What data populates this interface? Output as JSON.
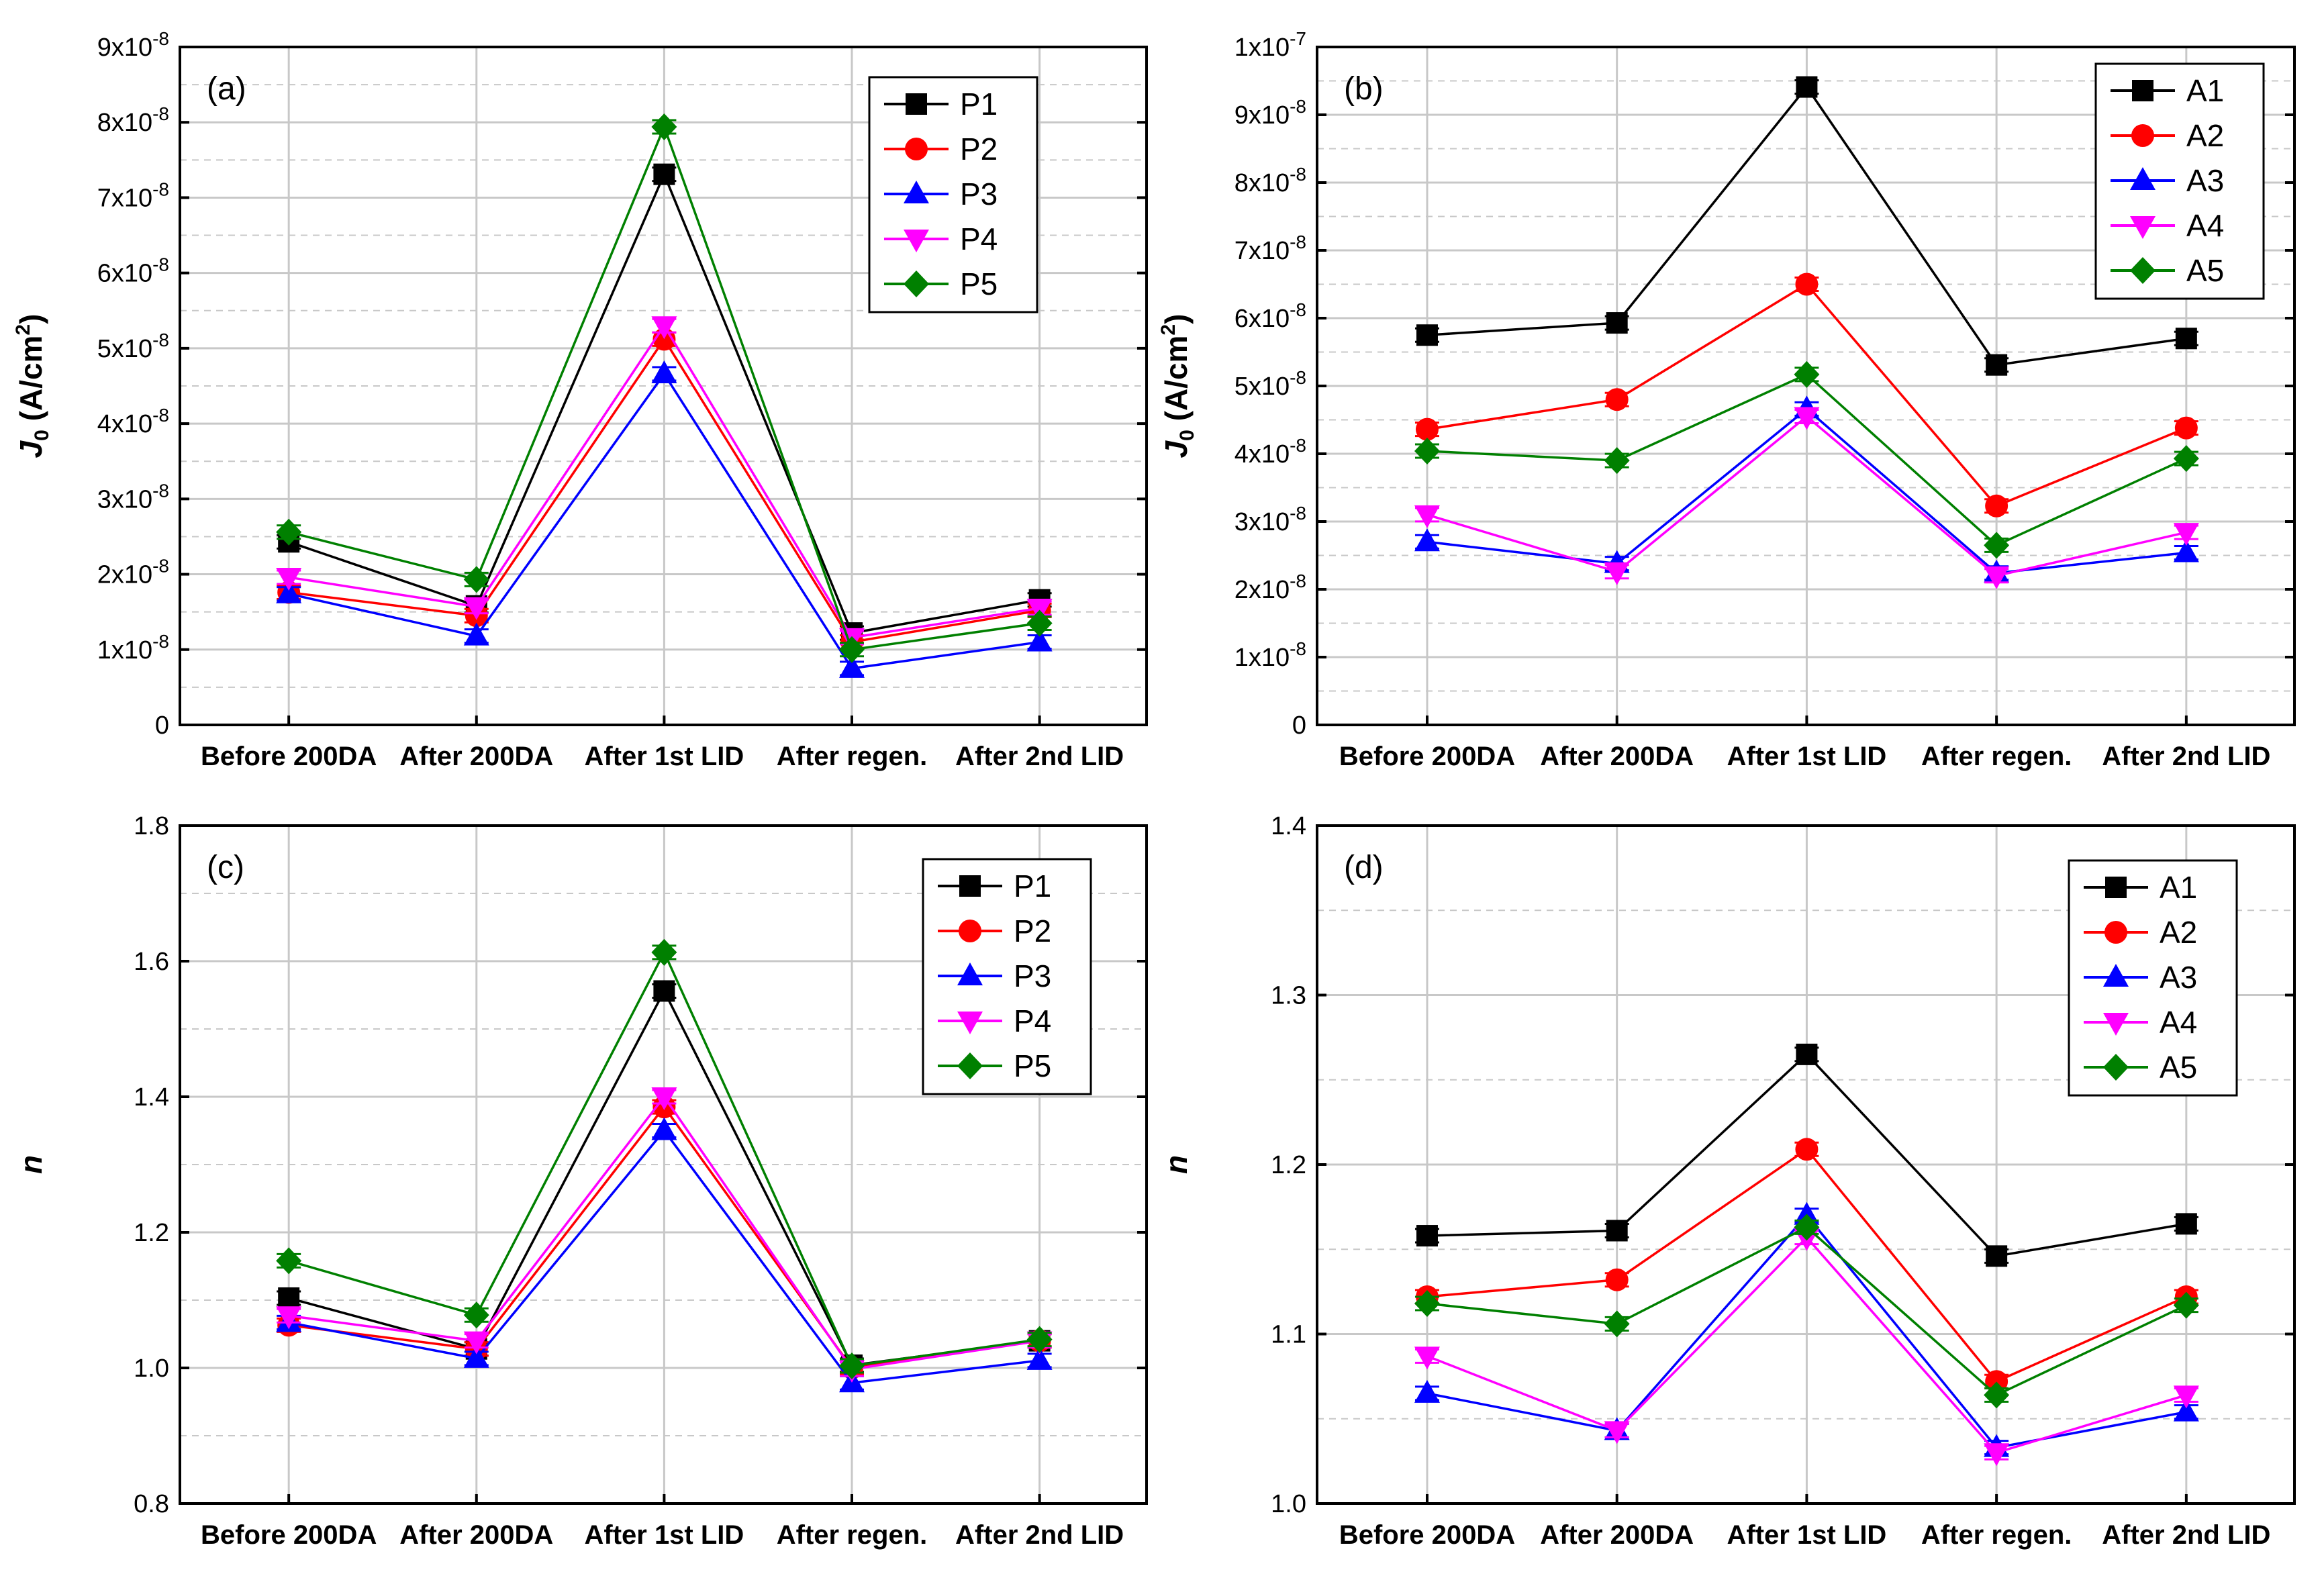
{
  "categories": [
    "Before 200DA",
    "After 200DA",
    "After 1st LID",
    "After regen.",
    "After 2nd LID"
  ],
  "colors": {
    "s1": "#000000",
    "s2": "#ff0000",
    "s3": "#0000ff",
    "s4": "#ff00ff",
    "s5": "#008000",
    "grid": "#c8c8c8"
  },
  "chart_data": [
    {
      "type": "line",
      "panel_label": "(a)",
      "ylabel": "J0 (A/cm2)",
      "ylabel_parts": {
        "main": "J",
        "sub": "0",
        "units": " (A/cm",
        "sup": "2",
        "close": ")"
      },
      "ylim": [
        0,
        9e-08
      ],
      "yticks": [
        {
          "v": 0,
          "mant": "0",
          "exp": ""
        },
        {
          "v": 1e-08,
          "mant": "1x10",
          "exp": "-8"
        },
        {
          "v": 2e-08,
          "mant": "2x10",
          "exp": "-8"
        },
        {
          "v": 3e-08,
          "mant": "3x10",
          "exp": "-8"
        },
        {
          "v": 4e-08,
          "mant": "4x10",
          "exp": "-8"
        },
        {
          "v": 5e-08,
          "mant": "5x10",
          "exp": "-8"
        },
        {
          "v": 6e-08,
          "mant": "6x10",
          "exp": "-8"
        },
        {
          "v": 7e-08,
          "mant": "7x10",
          "exp": "-8"
        },
        {
          "v": 8e-08,
          "mant": "8x10",
          "exp": "-8"
        },
        {
          "v": 9e-08,
          "mant": "9x10",
          "exp": "-8"
        }
      ],
      "legend_position": "top-right",
      "series": [
        {
          "name": "P1",
          "marker": "square",
          "values": [
            2.43e-08,
            1.58e-08,
            7.31e-08,
            1.22e-08,
            1.66e-08
          ]
        },
        {
          "name": "P2",
          "marker": "circle",
          "values": [
            1.76e-08,
            1.45e-08,
            5.12e-08,
            1.1e-08,
            1.52e-08
          ]
        },
        {
          "name": "P3",
          "marker": "triangle-up",
          "values": [
            1.74e-08,
            1.18e-08,
            4.66e-08,
            7.5e-09,
            1.1e-08
          ]
        },
        {
          "name": "P4",
          "marker": "triangle-down",
          "values": [
            1.96e-08,
            1.57e-08,
            5.3e-08,
            1.16e-08,
            1.55e-08
          ]
        },
        {
          "name": "P5",
          "marker": "diamond",
          "values": [
            2.56e-08,
            1.93e-08,
            7.94e-08,
            1e-08,
            1.35e-08
          ]
        }
      ]
    },
    {
      "type": "line",
      "panel_label": "(b)",
      "ylabel": "J0 (A/cm2)",
      "ylabel_parts": {
        "main": "J",
        "sub": "0",
        "units": " (A/cm",
        "sup": "2",
        "close": ")"
      },
      "ylim": [
        0,
        1e-07
      ],
      "yticks": [
        {
          "v": 0,
          "mant": "0",
          "exp": ""
        },
        {
          "v": 1e-08,
          "mant": "1x10",
          "exp": "-8"
        },
        {
          "v": 2e-08,
          "mant": "2x10",
          "exp": "-8"
        },
        {
          "v": 3e-08,
          "mant": "3x10",
          "exp": "-8"
        },
        {
          "v": 4e-08,
          "mant": "4x10",
          "exp": "-8"
        },
        {
          "v": 5e-08,
          "mant": "5x10",
          "exp": "-8"
        },
        {
          "v": 6e-08,
          "mant": "6x10",
          "exp": "-8"
        },
        {
          "v": 7e-08,
          "mant": "7x10",
          "exp": "-8"
        },
        {
          "v": 8e-08,
          "mant": "8x10",
          "exp": "-8"
        },
        {
          "v": 9e-08,
          "mant": "9x10",
          "exp": "-8"
        },
        {
          "v": 1e-07,
          "mant": "1x10",
          "exp": "-7"
        }
      ],
      "legend_position": "top-right",
      "series": [
        {
          "name": "A1",
          "marker": "square",
          "values": [
            5.75e-08,
            5.93e-08,
            9.41e-08,
            5.31e-08,
            5.7e-08
          ]
        },
        {
          "name": "A2",
          "marker": "circle",
          "values": [
            4.36e-08,
            4.8e-08,
            6.5e-08,
            3.23e-08,
            4.38e-08
          ]
        },
        {
          "name": "A3",
          "marker": "triangle-up",
          "values": [
            2.7e-08,
            2.38e-08,
            4.66e-08,
            2.24e-08,
            2.54e-08
          ]
        },
        {
          "name": "A4",
          "marker": "triangle-down",
          "values": [
            3.1e-08,
            2.26e-08,
            4.55e-08,
            2.2e-08,
            2.84e-08
          ]
        },
        {
          "name": "A5",
          "marker": "diamond",
          "values": [
            4.04e-08,
            3.9e-08,
            5.17e-08,
            2.65e-08,
            3.93e-08
          ]
        }
      ]
    },
    {
      "type": "line",
      "panel_label": "(c)",
      "ylabel": "n",
      "ylim": [
        0.8,
        1.8
      ],
      "yticks": [
        {
          "v": 0.8,
          "mant": "0.8",
          "exp": ""
        },
        {
          "v": 1.0,
          "mant": "1.0",
          "exp": ""
        },
        {
          "v": 1.2,
          "mant": "1.2",
          "exp": ""
        },
        {
          "v": 1.4,
          "mant": "1.4",
          "exp": ""
        },
        {
          "v": 1.6,
          "mant": "1.6",
          "exp": ""
        },
        {
          "v": 1.8,
          "mant": "1.8",
          "exp": ""
        }
      ],
      "legend_position": "top-right",
      "series": [
        {
          "name": "P1",
          "marker": "square",
          "values": [
            1.103,
            1.028,
            1.556,
            1.004,
            1.04
          ]
        },
        {
          "name": "P2",
          "marker": "circle",
          "values": [
            1.063,
            1.028,
            1.385,
            1.0,
            1.04
          ]
        },
        {
          "name": "P3",
          "marker": "triangle-up",
          "values": [
            1.067,
            1.014,
            1.35,
            0.978,
            1.011
          ]
        },
        {
          "name": "P4",
          "marker": "triangle-down",
          "values": [
            1.077,
            1.04,
            1.4,
            0.998,
            1.04
          ]
        },
        {
          "name": "P5",
          "marker": "diamond",
          "values": [
            1.158,
            1.078,
            1.613,
            1.003,
            1.042
          ]
        }
      ]
    },
    {
      "type": "line",
      "panel_label": "(d)",
      "ylabel": "n",
      "ylim": [
        1.0,
        1.4
      ],
      "yticks": [
        {
          "v": 1.0,
          "mant": "1.0",
          "exp": ""
        },
        {
          "v": 1.1,
          "mant": "1.1",
          "exp": ""
        },
        {
          "v": 1.2,
          "mant": "1.2",
          "exp": ""
        },
        {
          "v": 1.3,
          "mant": "1.3",
          "exp": ""
        },
        {
          "v": 1.4,
          "mant": "1.4",
          "exp": ""
        }
      ],
      "legend_position": "top-right",
      "series": [
        {
          "name": "A1",
          "marker": "square",
          "values": [
            1.158,
            1.161,
            1.265,
            1.146,
            1.165
          ]
        },
        {
          "name": "A2",
          "marker": "circle",
          "values": [
            1.122,
            1.132,
            1.209,
            1.072,
            1.122
          ]
        },
        {
          "name": "A3",
          "marker": "triangle-up",
          "values": [
            1.065,
            1.043,
            1.17,
            1.033,
            1.054
          ]
        },
        {
          "name": "A4",
          "marker": "triangle-down",
          "values": [
            1.087,
            1.043,
            1.157,
            1.03,
            1.064
          ]
        },
        {
          "name": "A5",
          "marker": "diamond",
          "values": [
            1.118,
            1.106,
            1.163,
            1.064,
            1.117
          ]
        }
      ]
    }
  ]
}
